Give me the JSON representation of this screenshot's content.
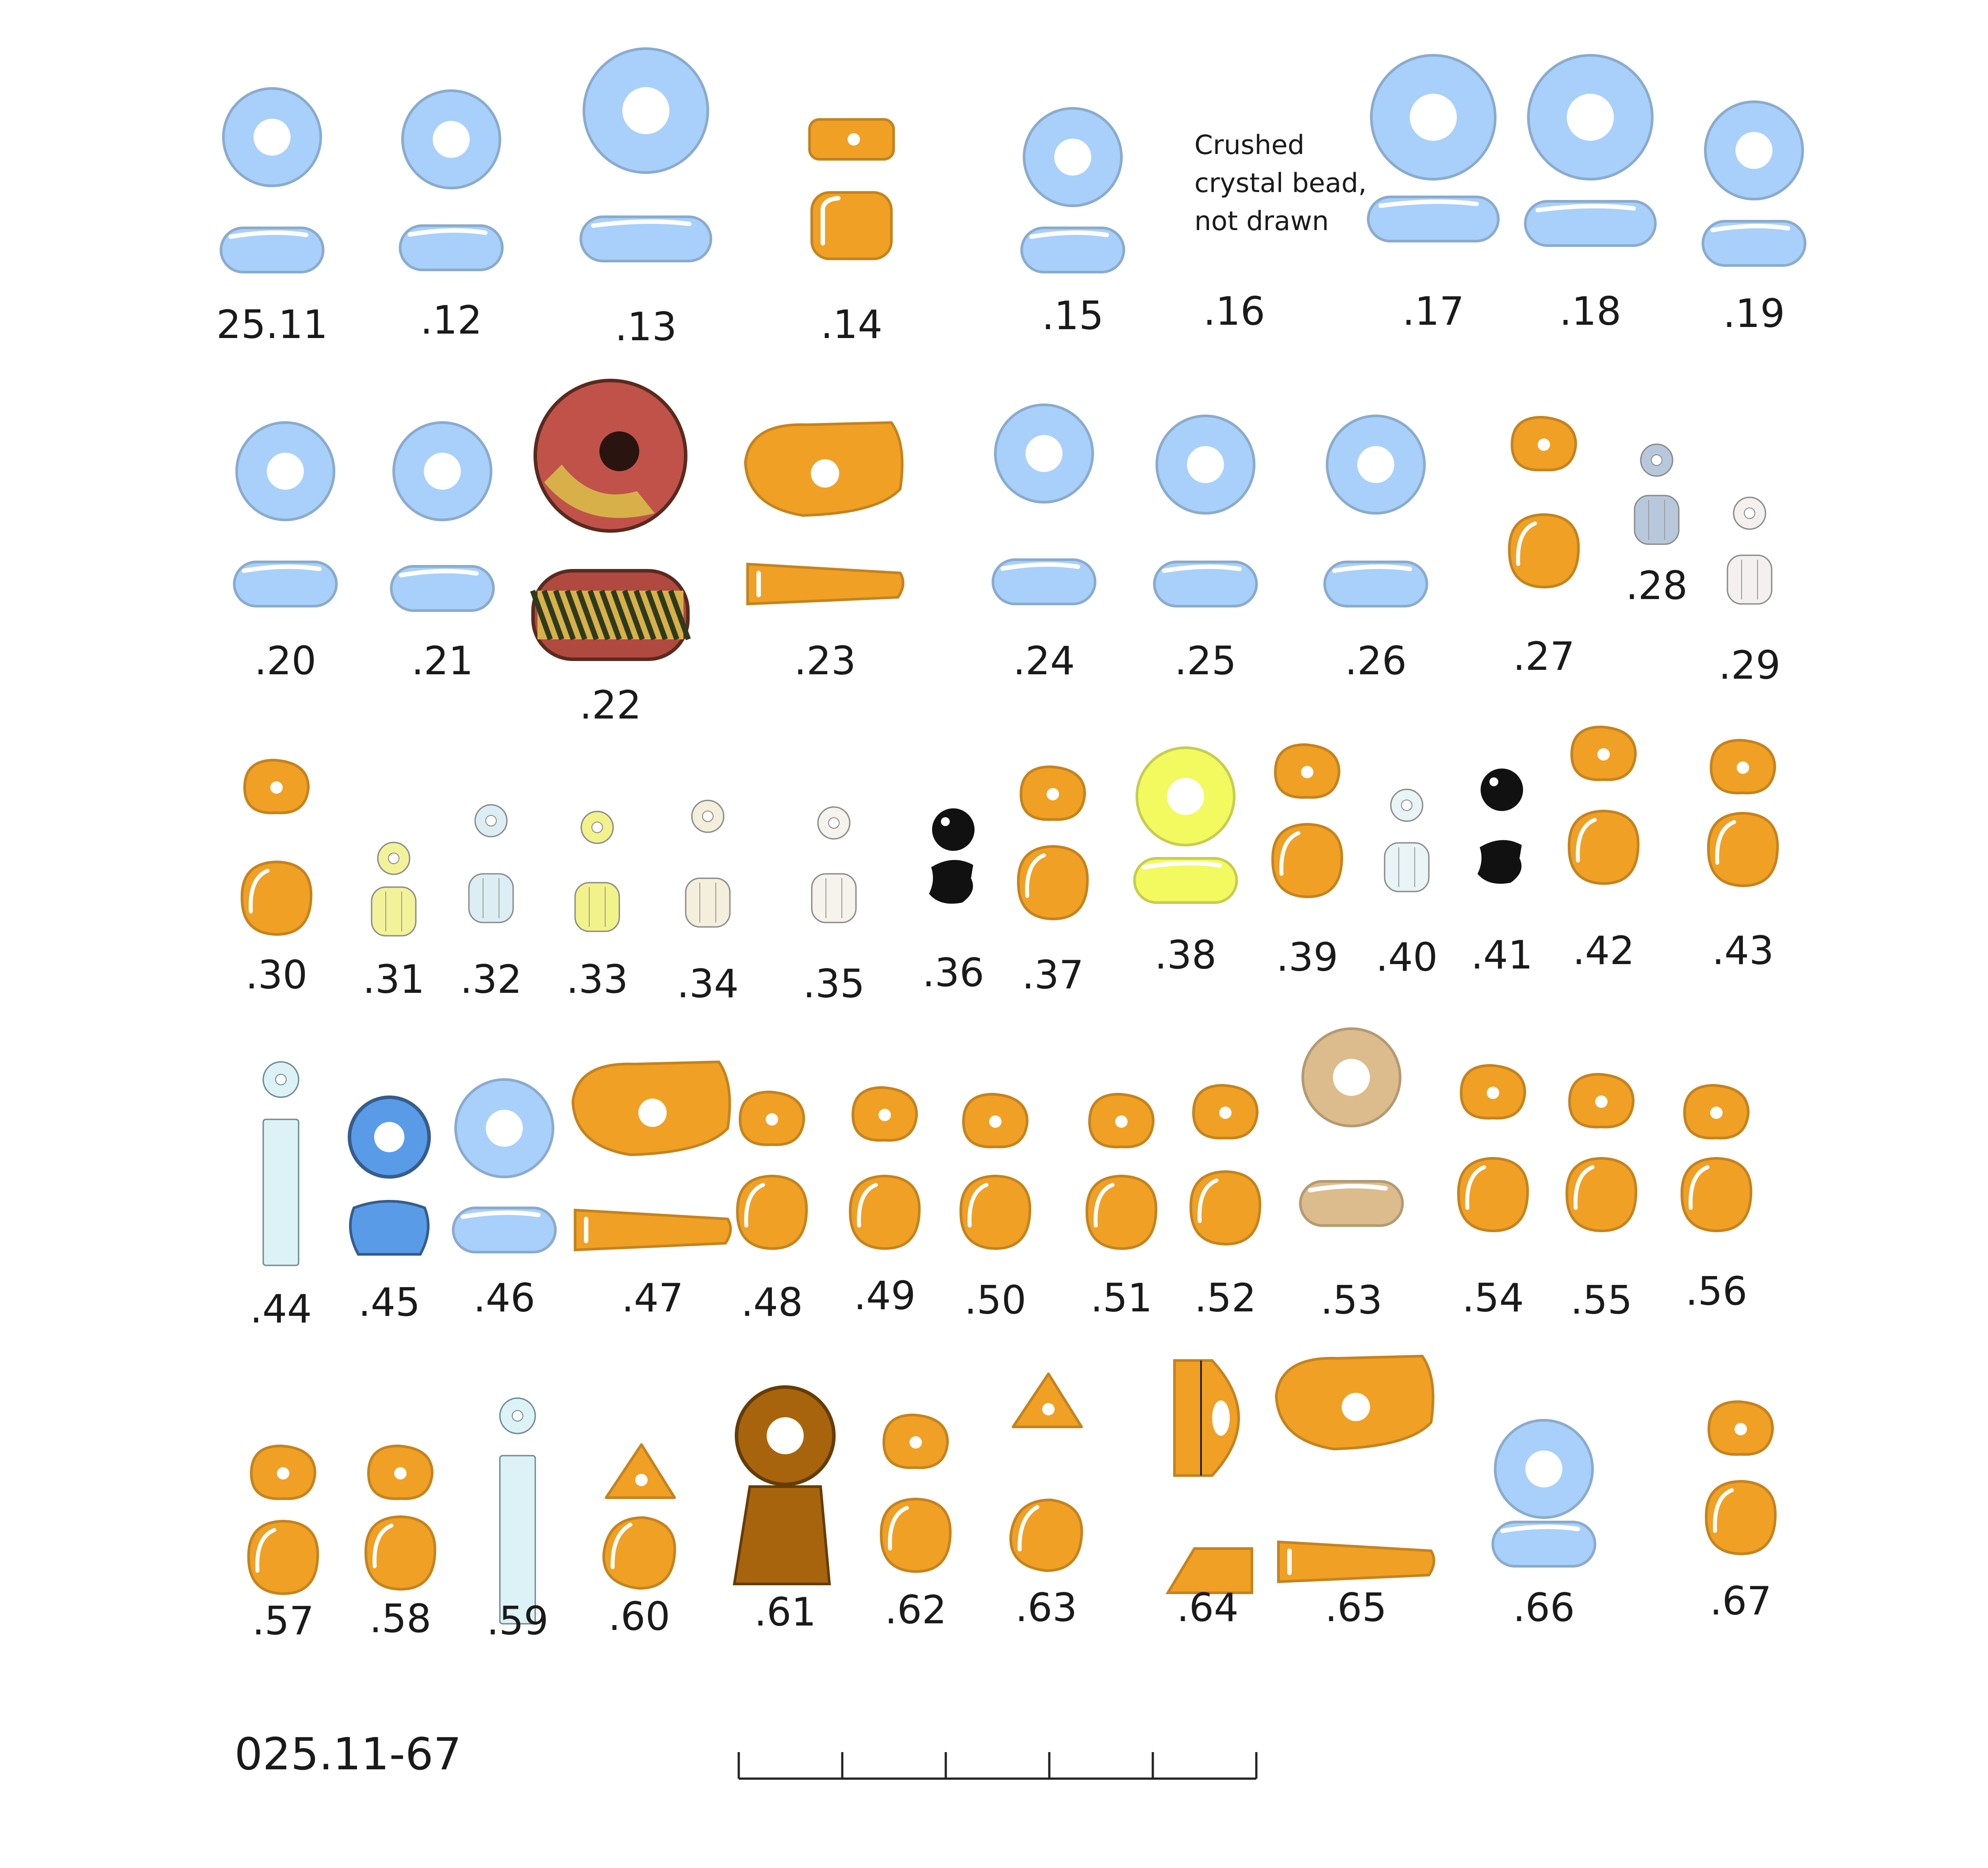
{
  "beads": [
    {
      "label": "25.11",
      "color": "#a8d0fa"
    },
    {
      "label": ".12",
      "color": "#a8d0fa"
    },
    {
      "label": ".13",
      "color": "#a8d0fa"
    },
    {
      "label": ".14",
      "color": "#f0a024"
    },
    {
      "label": ".15",
      "color": "#a8d0fa"
    },
    {
      "label": ".16",
      "color": "none"
    },
    {
      "label": ".17",
      "color": "#a8d0fa"
    },
    {
      "label": ".18",
      "color": "#a8d0fa"
    },
    {
      "label": ".19",
      "color": "#a8d0fa"
    },
    {
      "label": ".20",
      "color": "#a8d0fa"
    },
    {
      "label": ".21",
      "color": "#a8d0fa"
    },
    {
      "label": ".22",
      "color": "#c0524a"
    },
    {
      "label": ".23",
      "color": "#f0a024"
    },
    {
      "label": ".24",
      "color": "#a8d0fa"
    },
    {
      "label": ".25",
      "color": "#a8d0fa"
    },
    {
      "label": ".26",
      "color": "#a8d0fa"
    },
    {
      "label": ".27",
      "color": "#f0a024"
    },
    {
      "label": ".28",
      "color": "#b8c8dc"
    },
    {
      "label": ".29",
      "color": "#f4f0f0"
    },
    {
      "label": ".30",
      "color": "#f0a024"
    },
    {
      "label": ".31",
      "color": "#f2f29a"
    },
    {
      "label": ".32",
      "color": "#dceef4"
    },
    {
      "label": ".33",
      "color": "#f2f28a"
    },
    {
      "label": ".34",
      "color": "#f4eedc"
    },
    {
      "label": ".35",
      "color": "#f6f2ec"
    },
    {
      "label": ".36",
      "color": "#111111"
    },
    {
      "label": ".37",
      "color": "#f0a024"
    },
    {
      "label": ".38",
      "color": "#f2fa60"
    },
    {
      "label": ".39",
      "color": "#f0a024"
    },
    {
      "label": ".40",
      "color": "#e8f4f6"
    },
    {
      "label": ".41",
      "color": "#111111"
    },
    {
      "label": ".42",
      "color": "#f0a024"
    },
    {
      "label": ".43",
      "color": "#f0a024"
    },
    {
      "label": ".44",
      "color": "#dcf2f6"
    },
    {
      "label": ".45",
      "color": "#5a9be8"
    },
    {
      "label": ".46",
      "color": "#a8d0fa"
    },
    {
      "label": ".47",
      "color": "#f0a024"
    },
    {
      "label": ".48",
      "color": "#f0a024"
    },
    {
      "label": ".49",
      "color": "#f0a024"
    },
    {
      "label": ".50",
      "color": "#f0a024"
    },
    {
      "label": ".51",
      "color": "#f0a024"
    },
    {
      "label": ".52",
      "color": "#f0a024"
    },
    {
      "label": ".53",
      "color": "#dcbc8c"
    },
    {
      "label": ".54",
      "color": "#f0a024"
    },
    {
      "label": ".55",
      "color": "#f0a024"
    },
    {
      "label": ".56",
      "color": "#f0a024"
    },
    {
      "label": ".57",
      "color": "#f0a024"
    },
    {
      "label": ".58",
      "color": "#f0a024"
    },
    {
      "label": ".59",
      "color": "#dcf2f6"
    },
    {
      "label": ".60",
      "color": "#f0a024"
    },
    {
      "label": ".61",
      "color": "#a8640c"
    },
    {
      "label": ".62",
      "color": "#f0a024"
    },
    {
      "label": ".63",
      "color": "#f0a024"
    },
    {
      "label": ".64",
      "color": "#f0a024"
    },
    {
      "label": ".65",
      "color": "#f0a024"
    },
    {
      "label": ".66",
      "color": "#a8d0fa"
    },
    {
      "label": ".67",
      "color": "#f0a024"
    }
  ],
  "note": "Crushed\ncrystal bead,\n not drawn",
  "caption": "025.11-67",
  "scale_bar": {
    "divisions": 5
  }
}
